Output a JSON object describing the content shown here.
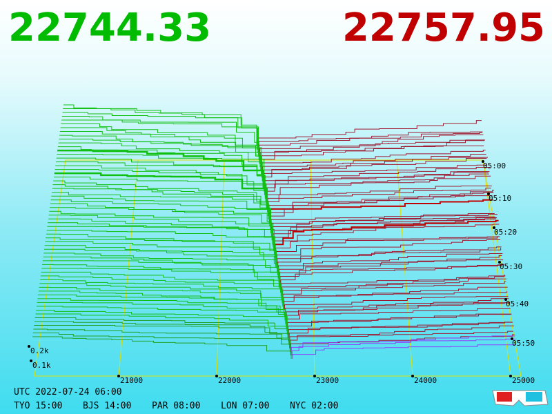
{
  "bid_price": 22744.33,
  "ask_price": 22757.95,
  "price_ticks": [
    21000,
    22000,
    23000,
    24000,
    25000
  ],
  "depth_ticks": [
    "0.2k",
    "0.1k"
  ],
  "time_ticks": [
    "05:00",
    "05:10",
    "05:20",
    "05:30",
    "05:40",
    "05:50"
  ],
  "clock": {
    "utc": "UTC 2022-07-24 06:00",
    "zones": [
      "TYO 15:00",
      "BJS 14:00",
      "PAR 08:00",
      "LON 07:00",
      "NYC 02:00"
    ]
  }
}
